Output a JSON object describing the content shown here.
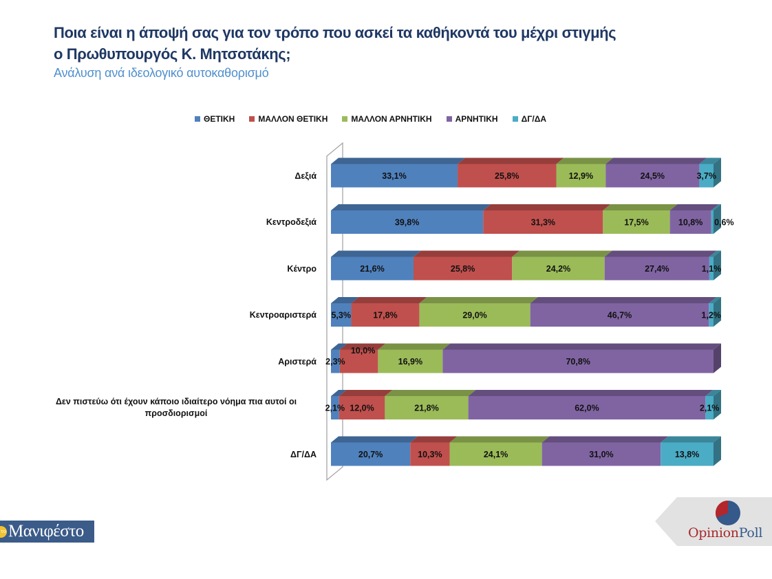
{
  "header": {
    "title_line1": "Ποια είναι η άποψή σας για τον τρόπο που ασκεί τα καθήκοντά του μέχρι στιγμής",
    "title_line2": "ο Πρωθυπουργός Κ. Μητσοτάκης;",
    "subtitle": "Ανάλυση ανά ιδεολογικό αυτοκαθορισμό"
  },
  "chart_data": {
    "type": "bar",
    "orientation": "horizontal",
    "stacking": "100%",
    "style": "3d",
    "title": "Ποια είναι η άποψή σας για τον τρόπο που ασκεί τα καθήκοντά του μέχρι στιγμής ο Πρωθυπουργός Κ. Μητσοτάκης;",
    "subtitle": "Ανάλυση ανά ιδεολογικό αυτοκαθορισμό",
    "xlabel": "",
    "ylabel": "",
    "xlim": [
      0,
      100
    ],
    "grid": false,
    "legend_position": "top",
    "categories": [
      "Δεξιά",
      "Κεντροδεξιά",
      "Κέντρο",
      "Κεντροαριστερά",
      "Αριστερά",
      "Δεν πιστεύω ότι έχουν κάποιο ιδιαίτερο νόημα πια αυτοί οι προσδιορισμοί",
      "ΔΓ/ΔΑ"
    ],
    "series": [
      {
        "name": "ΘΕΤΙΚΗ",
        "color": "#4F81BD",
        "values": [
          33.1,
          39.8,
          21.6,
          5.3,
          2.3,
          2.1,
          20.7
        ],
        "labels": [
          "33,1%",
          "39,8%",
          "21,6%",
          "5,3%",
          "2,3%",
          "2,1%",
          "20,7%"
        ]
      },
      {
        "name": "ΜΑΛΛΟΝ ΘΕΤΙΚΗ",
        "color": "#C0504D",
        "values": [
          25.8,
          31.3,
          25.8,
          17.8,
          10.0,
          12.0,
          10.3
        ],
        "labels": [
          "25,8%",
          "31,3%",
          "25,8%",
          "17,8%",
          "10,0%",
          "12,0%",
          "10,3%"
        ]
      },
      {
        "name": "ΜΑΛΛΟΝ ΑΡΝΗΤΙΚΗ",
        "color": "#9BBB59",
        "values": [
          12.9,
          17.5,
          24.2,
          29.0,
          16.9,
          21.8,
          24.1
        ],
        "labels": [
          "12,9%",
          "17,5%",
          "24,2%",
          "29,0%",
          "16,9%",
          "21,8%",
          "24,1%"
        ]
      },
      {
        "name": "ΑΡΝΗΤΙΚΗ",
        "color": "#8064A2",
        "values": [
          24.5,
          10.8,
          27.4,
          46.7,
          70.8,
          62.0,
          31.0
        ],
        "labels": [
          "24,5%",
          "10,8%",
          "27,4%",
          "46,7%",
          "70,8%",
          "62,0%",
          "31,0%"
        ]
      },
      {
        "name": "ΔΓ/ΔΑ",
        "color": "#4BACC6",
        "values": [
          3.7,
          0.6,
          1.1,
          1.2,
          null,
          2.1,
          13.8
        ],
        "labels": [
          "3,7%",
          "0,6%",
          "1,1%",
          "1,2%",
          null,
          "2,1%",
          "13,8%"
        ]
      }
    ]
  },
  "logos": {
    "left": {
      "prefix": "το",
      "name": "Μανιφέστο",
      "background": "#3B5B89"
    },
    "right": {
      "part1": "Opinion",
      "part2": "Poll",
      "pie_colors": [
        "#34598A",
        "#B3262B"
      ]
    }
  }
}
